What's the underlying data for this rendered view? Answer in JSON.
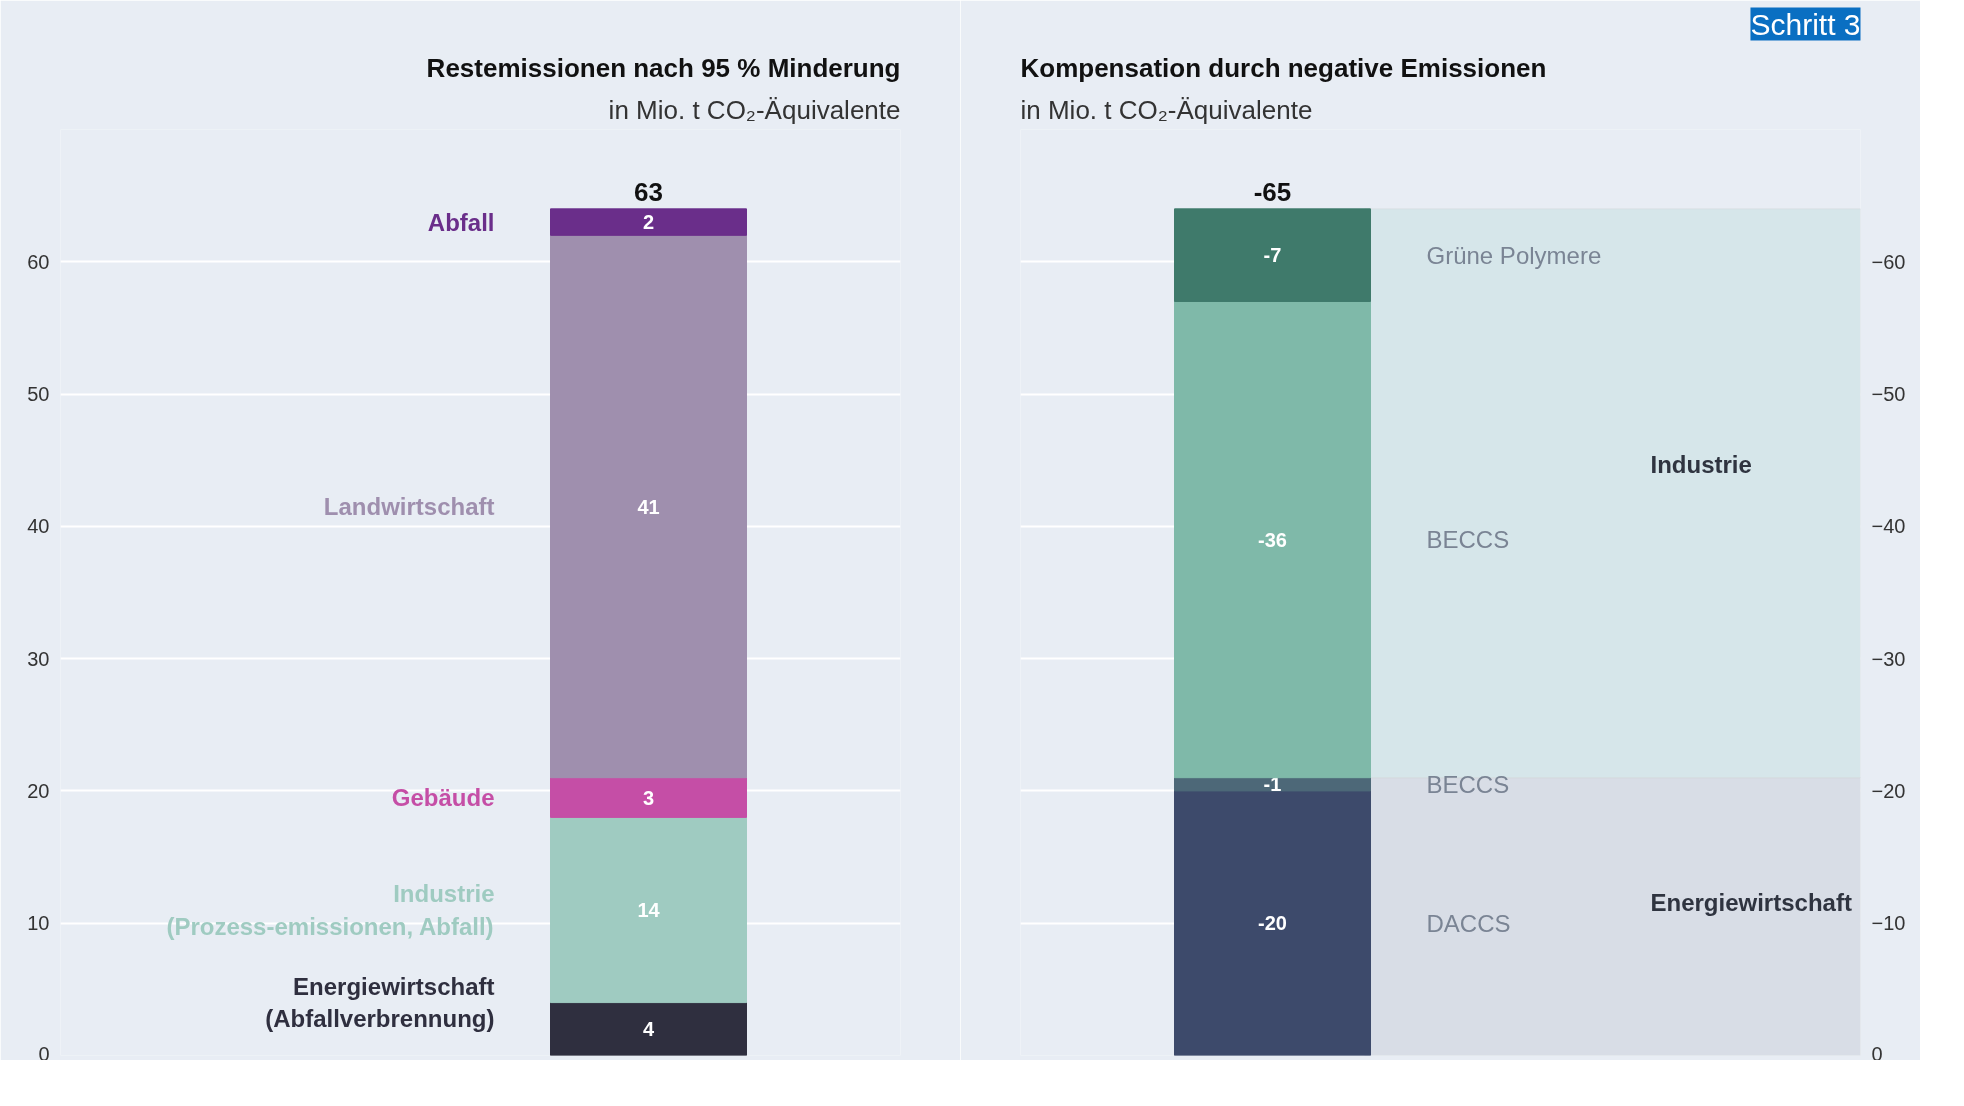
{
  "chart_data": [
    {
      "type": "bar",
      "stacked": true,
      "title": "Restemissionen nach 95 % Minderung",
      "subtitle": "in Mio. t CO₂-Äquivalente",
      "categories": [
        null
      ],
      "ylim": [
        0,
        70
      ],
      "yticks": [
        0,
        10,
        20,
        30,
        40,
        50,
        60
      ],
      "grid": "y",
      "data_labels": true,
      "totals": [
        "63"
      ],
      "series": [
        {
          "name": "Energiewirtschaft (Abfallverbrennung)",
          "color": "#2f2f3f",
          "values": [
            4
          ]
        },
        {
          "name": "Industrie (Prozess-emissionen, Abfall)",
          "color": "#9fcbc1",
          "values": [
            14
          ]
        },
        {
          "name": "Gebäude",
          "color": "#c54ea6",
          "values": [
            3
          ]
        },
        {
          "name": "Landwirtschaft",
          "color": "#9f8fae",
          "values": [
            41
          ]
        },
        {
          "name": "Abfall",
          "color": "#6a2e8a",
          "values": [
            2
          ]
        }
      ]
    },
    {
      "type": "bar",
      "stacked": true,
      "title": "Kompensation durch negative Emissionen",
      "subtitle": "in Mio. t CO₂-Äquivalente",
      "categories": [
        null
      ],
      "ylim": [
        0,
        -70
      ],
      "yticks": [
        0,
        -10,
        -20,
        -30,
        -40,
        -50,
        -60
      ],
      "grid": "y",
      "data_labels": true,
      "totals": [
        "-65"
      ],
      "series": [
        {
          "name": "DACCS",
          "color": "#3d4a6b",
          "values": [
            -20
          ]
        },
        {
          "name": "BECCS",
          "color": "#4d6878",
          "values": [
            -1
          ]
        },
        {
          "name": "BECCS",
          "color": "#7fb9a9",
          "values": [
            -36
          ]
        },
        {
          "name": "Grüne Polymere",
          "color": "#3f7a6b",
          "values": [
            -7
          ]
        }
      ],
      "bands": [
        {
          "axis": "y",
          "from": 0,
          "to": -21,
          "label": "Energiewirtschaft",
          "color": "#d8dde6"
        },
        {
          "axis": "y",
          "from": -21,
          "to": -64,
          "label": "Industrie",
          "color": "#d6e6ea"
        }
      ],
      "annotations": [
        "Schritt 3"
      ]
    }
  ]
}
